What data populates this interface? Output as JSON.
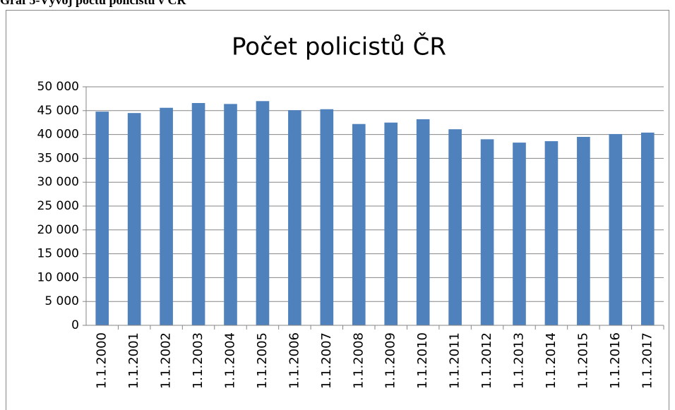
{
  "caption": "Graf 5-Vývoj počtu policistů v ČR",
  "chart_data": {
    "type": "bar",
    "title": "Počet policistů ČR",
    "categories": [
      "1.1.2000",
      "1.1.2001",
      "1.1.2002",
      "1.1.2003",
      "1.1.2004",
      "1.1.2005",
      "1.1.2006",
      "1.1.2007",
      "1.1.2008",
      "1.1.2009",
      "1.1.2010",
      "1.1.2011",
      "1.1.2012",
      "1.1.2013",
      "1.1.2014",
      "1.1.2015",
      "1.1.2016",
      "1.1.2017"
    ],
    "values": [
      44800,
      44500,
      45600,
      46600,
      46400,
      47000,
      45100,
      45300,
      42200,
      42500,
      43200,
      41100,
      39000,
      38300,
      38600,
      39500,
      40100,
      40400
    ],
    "color": "#4f81bd",
    "ylim": [
      0,
      50000
    ],
    "yticks": [
      0,
      {
        "value": 5000,
        "label": "5 000"
      },
      {
        "value": 10000,
        "label": "10 000"
      },
      {
        "value": 15000,
        "label": "15 000"
      },
      {
        "value": 20000,
        "label": "20 000"
      },
      {
        "value": 25000,
        "label": "25 000"
      },
      {
        "value": 30000,
        "label": "30 000"
      },
      {
        "value": 35000,
        "label": "35 000"
      },
      {
        "value": 40000,
        "label": "40 000"
      },
      {
        "value": 45000,
        "label": "45 000"
      },
      {
        "value": 50000,
        "label": "50 000"
      }
    ],
    "grid": true
  }
}
